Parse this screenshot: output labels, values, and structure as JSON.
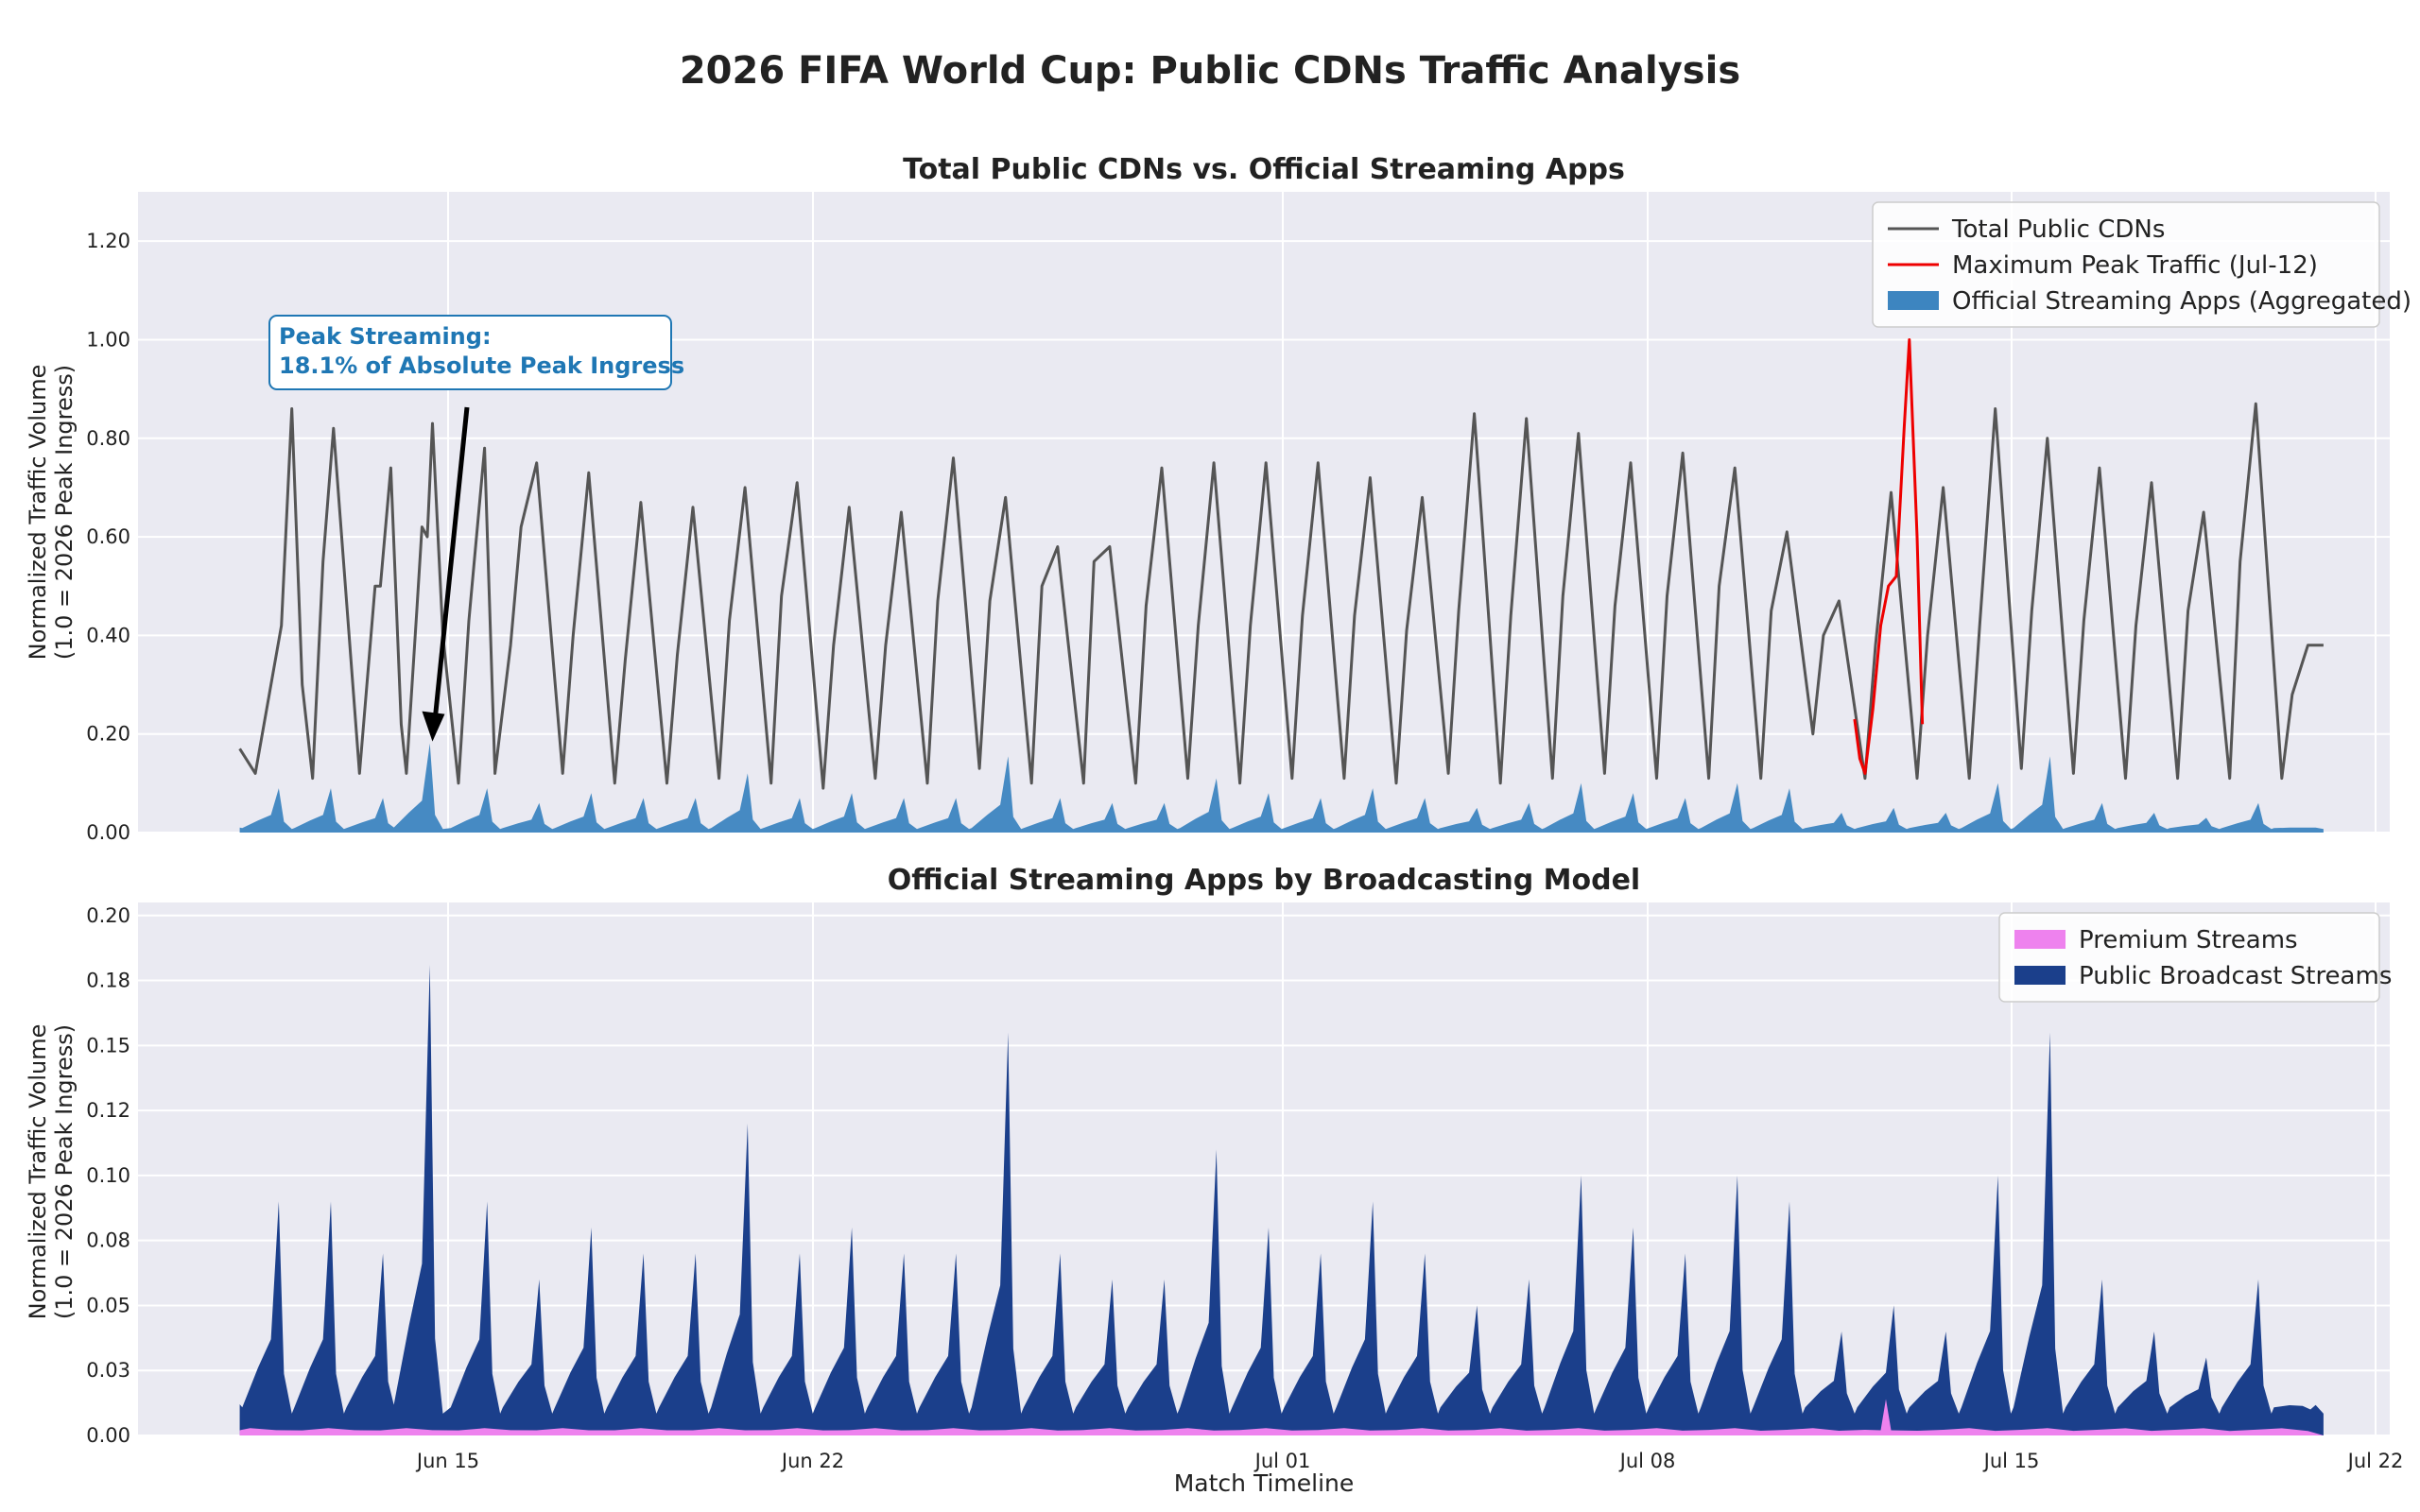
{
  "figure": {
    "title": "2026 FIFA World Cup: Public CDNs Traffic Analysis",
    "xlabel": "Match Timeline"
  },
  "colors": {
    "panel_bg": "#eaeaf2",
    "total_line": "#555555",
    "peak_line": "#ee0000",
    "official_fill": "#3d85c0",
    "premium_fill": "#ee82ee",
    "public_fill": "#1b3f8b",
    "annotation_text": "#1f77b4"
  },
  "chart_data": [
    {
      "type": "line",
      "title": "Total Public CDNs vs. Official Streaming Apps",
      "ylabel": "Normalized Traffic Volume\n(1.0 = 2026 Peak Ingress)",
      "x_ticks": [
        "Jun 15",
        "Jun 22",
        "Jul 01",
        "Jul 08",
        "Jul 15",
        "Jul 22"
      ],
      "y_ticks": [
        "0.00",
        "0.20",
        "0.40",
        "0.60",
        "0.80",
        "1.00",
        "1.20"
      ],
      "ylim": [
        0,
        1.3
      ],
      "x_range": [
        "Jun 11",
        "Jul 22"
      ],
      "legend_position": "top-right",
      "legend": [
        "Total Public CDNs",
        "Maximum Peak Traffic (Jul-12)",
        "Official Streaming Apps (Aggregated)"
      ],
      "annotation": {
        "line1": "Peak Streaming:",
        "line2": "18.1% of Absolute Peak Ingress",
        "target_x_day": 14.7,
        "target_y": 0.181
      },
      "series": [
        {
          "name": "Total Public CDNs",
          "style": "line",
          "x_days": [
            11.0,
            11.3,
            11.8,
            12.0,
            12.2,
            12.4,
            12.6,
            12.8,
            12.8,
            13.3,
            13.6,
            13.7,
            13.9,
            14.1,
            14.2,
            14.4,
            14.5,
            14.6,
            14.7,
            14.9,
            15.2,
            15.4,
            15.7,
            15.7,
            15.9,
            16.2,
            16.4,
            16.7,
            16.7,
            17.2,
            17.4,
            17.7,
            17.7,
            18.2,
            18.4,
            18.7,
            18.7,
            19.2,
            19.4,
            19.7,
            19.7,
            20.2,
            20.4,
            20.7,
            20.7,
            21.2,
            21.4,
            21.7,
            21.7,
            22.2,
            22.4,
            22.7,
            22.7,
            23.2,
            23.4,
            23.7,
            23.7,
            24.2,
            24.4,
            24.7,
            24.7,
            25.2,
            25.4,
            25.7,
            25.7,
            26.2,
            26.4,
            26.7,
            26.7,
            27.2,
            27.4,
            27.7,
            27.7,
            28.2,
            28.4,
            28.7,
            28.7,
            29.2,
            29.4,
            29.7,
            29.7,
            30.2,
            30.4,
            30.7,
            30.7,
            31.2,
            31.4,
            31.7,
            31.7,
            32.2,
            32.4,
            32.7,
            32.7,
            33.2,
            33.4,
            33.7,
            33.7,
            34.2,
            34.4,
            34.7,
            34.7,
            35.2,
            35.4,
            35.7,
            35.7,
            36.2,
            36.4,
            36.7,
            36.7,
            37.2,
            37.4,
            37.7,
            37.7,
            38.2,
            38.4,
            38.7,
            38.7,
            39.2,
            39.4,
            39.7,
            39.7,
            40.2,
            40.4,
            40.7,
            40.7,
            41.2,
            41.4,
            41.7,
            41.7,
            42.2,
            42.4,
            42.7,
            42.7,
            43.2,
            43.4,
            43.7,
            43.7,
            44.2,
            44.4,
            44.7,
            44.7,
            45.2,
            45.4,
            45.7,
            45.7,
            46.2,
            46.4,
            46.7,
            46.7,
            47.2,
            47.4,
            47.7,
            47.7,
            48.2,
            48.4,
            48.7,
            48.7,
            49.2,
            49.4,
            49.7,
            49.7,
            50.2,
            50.4,
            50.7,
            50.7,
            51.0
          ],
          "values": [
            0.17,
            0.12,
            0.42,
            0.86,
            0.3,
            0.11,
            0.55,
            0.82,
            0.82,
            0.12,
            0.5,
            0.5,
            0.74,
            0.22,
            0.12,
            0.45,
            0.62,
            0.6,
            0.83,
            0.4,
            0.1,
            0.43,
            0.78,
            0.78,
            0.12,
            0.38,
            0.62,
            0.75,
            0.75,
            0.12,
            0.4,
            0.73,
            0.73,
            0.1,
            0.35,
            0.67,
            0.67,
            0.1,
            0.36,
            0.66,
            0.66,
            0.11,
            0.43,
            0.7,
            0.7,
            0.1,
            0.48,
            0.71,
            0.71,
            0.09,
            0.38,
            0.66,
            0.66,
            0.11,
            0.38,
            0.65,
            0.65,
            0.1,
            0.47,
            0.76,
            0.76,
            0.13,
            0.47,
            0.68,
            0.68,
            0.1,
            0.5,
            0.58,
            0.58,
            0.1,
            0.55,
            0.58,
            0.58,
            0.1,
            0.46,
            0.74,
            0.74,
            0.11,
            0.42,
            0.75,
            0.75,
            0.1,
            0.42,
            0.75,
            0.75,
            0.11,
            0.44,
            0.75,
            0.75,
            0.11,
            0.44,
            0.72,
            0.72,
            0.1,
            0.41,
            0.68,
            0.68,
            0.12,
            0.45,
            0.85,
            0.85,
            0.1,
            0.44,
            0.84,
            0.84,
            0.11,
            0.48,
            0.81,
            0.81,
            0.12,
            0.46,
            0.75,
            0.75,
            0.11,
            0.48,
            0.77,
            0.77,
            0.11,
            0.5,
            0.74,
            0.74,
            0.11,
            0.45,
            0.61,
            0.61,
            0.2,
            0.4,
            0.47,
            0.47,
            0.11,
            0.38,
            0.69,
            0.69,
            0.11,
            0.4,
            0.7,
            0.7,
            0.11,
            0.42,
            0.86,
            0.86,
            0.13,
            0.45,
            0.8,
            0.8,
            0.12,
            0.43,
            0.74,
            0.74,
            0.11,
            0.42,
            0.71,
            0.71,
            0.11,
            0.45,
            0.65,
            0.65,
            0.11,
            0.55,
            0.87,
            0.87,
            0.11,
            0.28,
            0.38,
            0.38,
            0.38
          ]
        },
        {
          "name": "Maximum Peak Traffic (Jul-12)",
          "style": "line",
          "x_days": [
            42.0,
            42.1,
            42.2,
            42.35,
            42.5,
            42.65,
            42.8,
            42.95,
            43.05,
            43.2,
            43.3
          ],
          "values": [
            0.23,
            0.15,
            0.12,
            0.25,
            0.42,
            0.5,
            0.52,
            0.82,
            1.0,
            0.6,
            0.22
          ]
        },
        {
          "name": "Official Streaming Apps (Aggregated)",
          "style": "area",
          "peaks_x_days": [
            11.8,
            12.8,
            13.8,
            14.7,
            15.8,
            16.8,
            17.8,
            18.8,
            19.8,
            20.8,
            21.8,
            22.8,
            23.8,
            24.8,
            25.8,
            26.8,
            27.8,
            28.8,
            29.8,
            30.8,
            31.8,
            32.8,
            33.8,
            34.8,
            35.8,
            36.8,
            37.8,
            38.8,
            39.8,
            40.8,
            41.8,
            42.8,
            43.8,
            44.8,
            45.8,
            46.8,
            47.8,
            48.8,
            49.8,
            50.8
          ],
          "peak_values": [
            0.09,
            0.09,
            0.07,
            0.181,
            0.09,
            0.06,
            0.08,
            0.07,
            0.07,
            0.12,
            0.07,
            0.08,
            0.07,
            0.07,
            0.155,
            0.07,
            0.06,
            0.06,
            0.11,
            0.08,
            0.07,
            0.09,
            0.07,
            0.05,
            0.06,
            0.1,
            0.08,
            0.07,
            0.1,
            0.09,
            0.04,
            0.05,
            0.04,
            0.1,
            0.155,
            0.06,
            0.04,
            0.03,
            0.06,
            0.01
          ],
          "base_value": 0.01
        }
      ]
    },
    {
      "type": "area",
      "title": "Official Streaming Apps by Broadcasting Model",
      "ylabel": "Normalized Traffic Volume\n(1.0 = 2026 Peak Ingress)",
      "x_ticks": [
        "Jun 15",
        "Jun 22",
        "Jul 01",
        "Jul 08",
        "Jul 15",
        "Jul 22"
      ],
      "y_ticks": [
        "0.00",
        "0.03",
        "0.05",
        "0.08",
        "0.10",
        "0.12",
        "0.15",
        "0.18",
        "0.20"
      ],
      "ylim": [
        0,
        0.205
      ],
      "x_range": [
        "Jun 11",
        "Jul 22"
      ],
      "legend_position": "top-right",
      "legend": [
        "Premium Streams",
        "Public Broadcast Streams"
      ],
      "series": [
        {
          "name": "Public Broadcast Streams",
          "style": "stacked-area",
          "peaks_x_days": [
            11.8,
            12.8,
            13.8,
            14.7,
            15.8,
            16.8,
            17.8,
            18.8,
            19.8,
            20.8,
            21.8,
            22.8,
            23.8,
            24.8,
            25.8,
            26.8,
            27.8,
            28.8,
            29.8,
            30.8,
            31.8,
            32.8,
            33.8,
            34.8,
            35.8,
            36.8,
            37.8,
            38.8,
            39.8,
            40.8,
            41.8,
            42.8,
            43.8,
            44.8,
            45.8,
            46.8,
            47.8,
            48.8,
            49.8,
            50.8
          ],
          "peak_values": [
            0.09,
            0.09,
            0.07,
            0.181,
            0.09,
            0.06,
            0.08,
            0.07,
            0.07,
            0.12,
            0.07,
            0.08,
            0.07,
            0.07,
            0.155,
            0.07,
            0.06,
            0.06,
            0.11,
            0.08,
            0.07,
            0.09,
            0.07,
            0.05,
            0.06,
            0.1,
            0.08,
            0.07,
            0.1,
            0.09,
            0.04,
            0.05,
            0.04,
            0.1,
            0.155,
            0.06,
            0.04,
            0.03,
            0.06,
            0.01
          ],
          "base_value": 0.012
        },
        {
          "name": "Premium Streams",
          "style": "stacked-area",
          "typical_value": 0.002,
          "spike_x_day": 42.6,
          "spike_value": 0.014
        }
      ]
    }
  ]
}
